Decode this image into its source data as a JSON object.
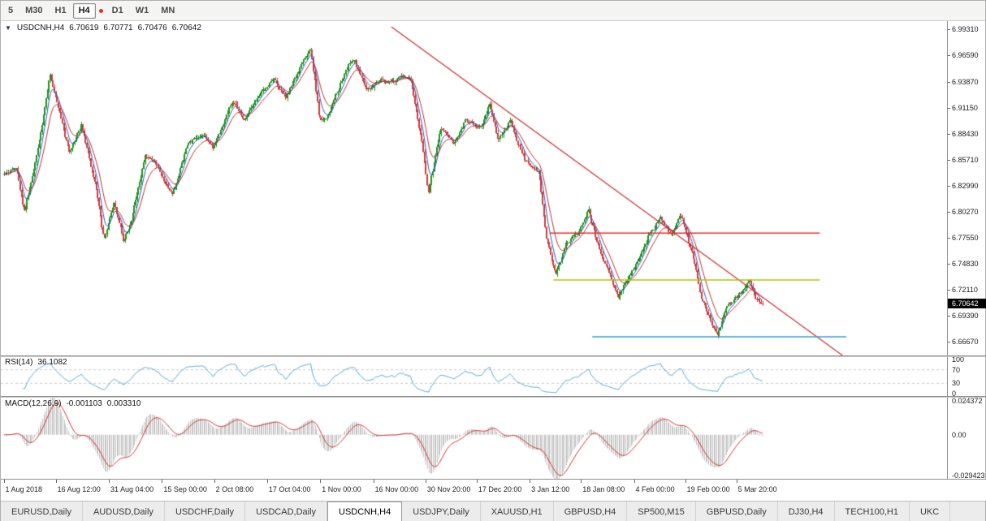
{
  "colors": {
    "candle_up": "#179417",
    "candle_down": "#CE3B3B",
    "ma_fast": "#2F55C2",
    "ma_slow": "#B8312F",
    "rsi_line": "#53A6D8",
    "rsi_level_dash": "#c9c9c9",
    "macd_hist": "#C3C3C3",
    "macd_signal": "#CF2E2E",
    "trendline": "#CC2B2B",
    "badge_bg": "#000000",
    "badge_text": "#FFFFFF"
  },
  "toolbar": {
    "timeframes": [
      {
        "label": "5",
        "active": false
      },
      {
        "label": "M30",
        "active": false
      },
      {
        "label": "H1",
        "active": false
      },
      {
        "label": "H4",
        "active": true
      },
      {
        "label": "D1",
        "active": false
      },
      {
        "label": "W1",
        "active": false
      },
      {
        "label": "MN",
        "active": false
      }
    ]
  },
  "header": {
    "symbol": "USDCNH,H4",
    "open": "6.70619",
    "high": "6.70771",
    "low": "6.70476",
    "close": "6.70642"
  },
  "price_axis": {
    "min": 6.652,
    "max": 7.002,
    "labels": [
      "6.99310",
      "6.96590",
      "6.93870",
      "6.91150",
      "6.88430",
      "6.85710",
      "6.82990",
      "6.80270",
      "6.77550",
      "6.74830",
      "6.72110",
      "6.69390",
      "6.66670"
    ],
    "current": "6.70642",
    "current_price": 6.70642
  },
  "time_axis": {
    "labels": [
      {
        "text": "1 Aug 2018",
        "t": 0.003
      },
      {
        "text": "16 Aug 12:00",
        "t": 0.058
      },
      {
        "text": "31 Aug 04:00",
        "t": 0.114
      },
      {
        "text": "15 Sep 00:00",
        "t": 0.17
      },
      {
        "text": "2 Oct 08:00",
        "t": 0.225
      },
      {
        "text": "17 Oct 04:00",
        "t": 0.281
      },
      {
        "text": "1 Nov 00:00",
        "t": 0.337
      },
      {
        "text": "16 Nov 00:00",
        "t": 0.393
      },
      {
        "text": "30 Nov 20:00",
        "t": 0.448
      },
      {
        "text": "17 Dec 20:00",
        "t": 0.502
      },
      {
        "text": "3 Jan 12:00",
        "t": 0.558
      },
      {
        "text": "18 Jan 08:00",
        "t": 0.612
      },
      {
        "text": "4 Feb 00:00",
        "t": 0.668
      },
      {
        "text": "19 Feb 00:00",
        "t": 0.722
      },
      {
        "text": "5 Mar 20:00",
        "t": 0.776
      }
    ]
  },
  "rsi": {
    "name": "RSI(14)",
    "value": "36.1082",
    "period": 14,
    "axis_labels": [
      100,
      70,
      30,
      0
    ],
    "dashed_levels": [
      70,
      30
    ]
  },
  "macd": {
    "name": "MACD(12,26,9)",
    "value_main": "-0.001103",
    "value_signal": "0.003310",
    "fast": 12,
    "slow": 26,
    "signal": 9,
    "max": 0.024372,
    "min": -0.029423,
    "axis_labels": [
      {
        "text": "0.024372",
        "v": 0.024372
      },
      {
        "text": "0.00",
        "v": 0
      },
      {
        "text": "-0.029423",
        "v": -0.029423
      }
    ]
  },
  "chart_data": {
    "type": "candlestick",
    "symbol": "USDCNH",
    "timeframe": "H4",
    "candle_count": 560,
    "seed": 42,
    "span": [
      0.0035,
      0.8035
    ],
    "last_close": 6.70642,
    "ma_fast": 6,
    "ma_slow": 13,
    "price_path": [
      [
        0.0,
        6.842
      ],
      [
        0.016,
        6.85
      ],
      [
        0.027,
        6.806
      ],
      [
        0.043,
        6.86
      ],
      [
        0.061,
        6.944
      ],
      [
        0.072,
        6.905
      ],
      [
        0.086,
        6.863
      ],
      [
        0.102,
        6.894
      ],
      [
        0.121,
        6.826
      ],
      [
        0.132,
        6.772
      ],
      [
        0.145,
        6.812
      ],
      [
        0.158,
        6.772
      ],
      [
        0.168,
        6.794
      ],
      [
        0.186,
        6.858
      ],
      [
        0.204,
        6.846
      ],
      [
        0.222,
        6.821
      ],
      [
        0.241,
        6.869
      ],
      [
        0.261,
        6.886
      ],
      [
        0.276,
        6.871
      ],
      [
        0.3,
        6.918
      ],
      [
        0.317,
        6.897
      ],
      [
        0.336,
        6.924
      ],
      [
        0.357,
        6.939
      ],
      [
        0.372,
        6.922
      ],
      [
        0.389,
        6.95
      ],
      [
        0.404,
        6.979
      ],
      [
        0.415,
        6.903
      ],
      [
        0.426,
        6.898
      ],
      [
        0.443,
        6.934
      ],
      [
        0.461,
        6.963
      ],
      [
        0.477,
        6.93
      ],
      [
        0.497,
        6.938
      ],
      [
        0.517,
        6.938
      ],
      [
        0.536,
        6.942
      ],
      [
        0.55,
        6.882
      ],
      [
        0.56,
        6.824
      ],
      [
        0.576,
        6.889
      ],
      [
        0.593,
        6.868
      ],
      [
        0.608,
        6.897
      ],
      [
        0.628,
        6.887
      ],
      [
        0.64,
        6.912
      ],
      [
        0.651,
        6.879
      ],
      [
        0.668,
        6.895
      ],
      [
        0.687,
        6.86
      ],
      [
        0.705,
        6.843
      ],
      [
        0.716,
        6.772
      ],
      [
        0.728,
        6.737
      ],
      [
        0.742,
        6.768
      ],
      [
        0.758,
        6.781
      ],
      [
        0.771,
        6.81
      ],
      [
        0.784,
        6.768
      ],
      [
        0.797,
        6.74
      ],
      [
        0.81,
        6.712
      ],
      [
        0.823,
        6.737
      ],
      [
        0.838,
        6.758
      ],
      [
        0.853,
        6.786
      ],
      [
        0.866,
        6.795
      ],
      [
        0.879,
        6.778
      ],
      [
        0.894,
        6.797
      ],
      [
        0.907,
        6.758
      ],
      [
        0.919,
        6.714
      ],
      [
        0.932,
        6.686
      ],
      [
        0.941,
        6.677
      ],
      [
        0.952,
        6.699
      ],
      [
        0.963,
        6.711
      ],
      [
        0.973,
        6.719
      ],
      [
        0.982,
        6.728
      ],
      [
        0.99,
        6.713
      ],
      [
        1.0,
        6.70642
      ]
    ],
    "overlays": {
      "trendline": {
        "x1": 0.412,
        "p1": 6.996,
        "x2": 0.888,
        "p2": 6.652,
        "color": "#CC2B2B"
      },
      "hlines": [
        {
          "p": 6.78,
          "x1": 0.579,
          "x2": 0.864,
          "color": "#E03030"
        },
        {
          "p": 6.731,
          "x1": 0.583,
          "x2": 0.864,
          "color": "#B3BE0A"
        },
        {
          "p": 6.6715,
          "x1": 0.624,
          "x2": 0.892,
          "color": "#2E9CDB"
        }
      ]
    }
  },
  "tabs": [
    {
      "label": "EURUSD,Daily",
      "active": false
    },
    {
      "label": "AUDUSD,Daily",
      "active": false
    },
    {
      "label": "USDCHF,Daily",
      "active": false
    },
    {
      "label": "USDCAD,Daily",
      "active": false
    },
    {
      "label": "USDCNH,H4",
      "active": true
    },
    {
      "label": "USDJPY,Daily",
      "active": false
    },
    {
      "label": "XAUUSD,H1",
      "active": false
    },
    {
      "label": "GBPUSD,H4",
      "active": false
    },
    {
      "label": "SP500,M15",
      "active": false
    },
    {
      "label": "GBPUSD,Daily",
      "active": false
    },
    {
      "label": "DJ30,H4",
      "active": false
    },
    {
      "label": "TECH100,H1",
      "active": false
    },
    {
      "label": "UKC",
      "active": false
    }
  ]
}
